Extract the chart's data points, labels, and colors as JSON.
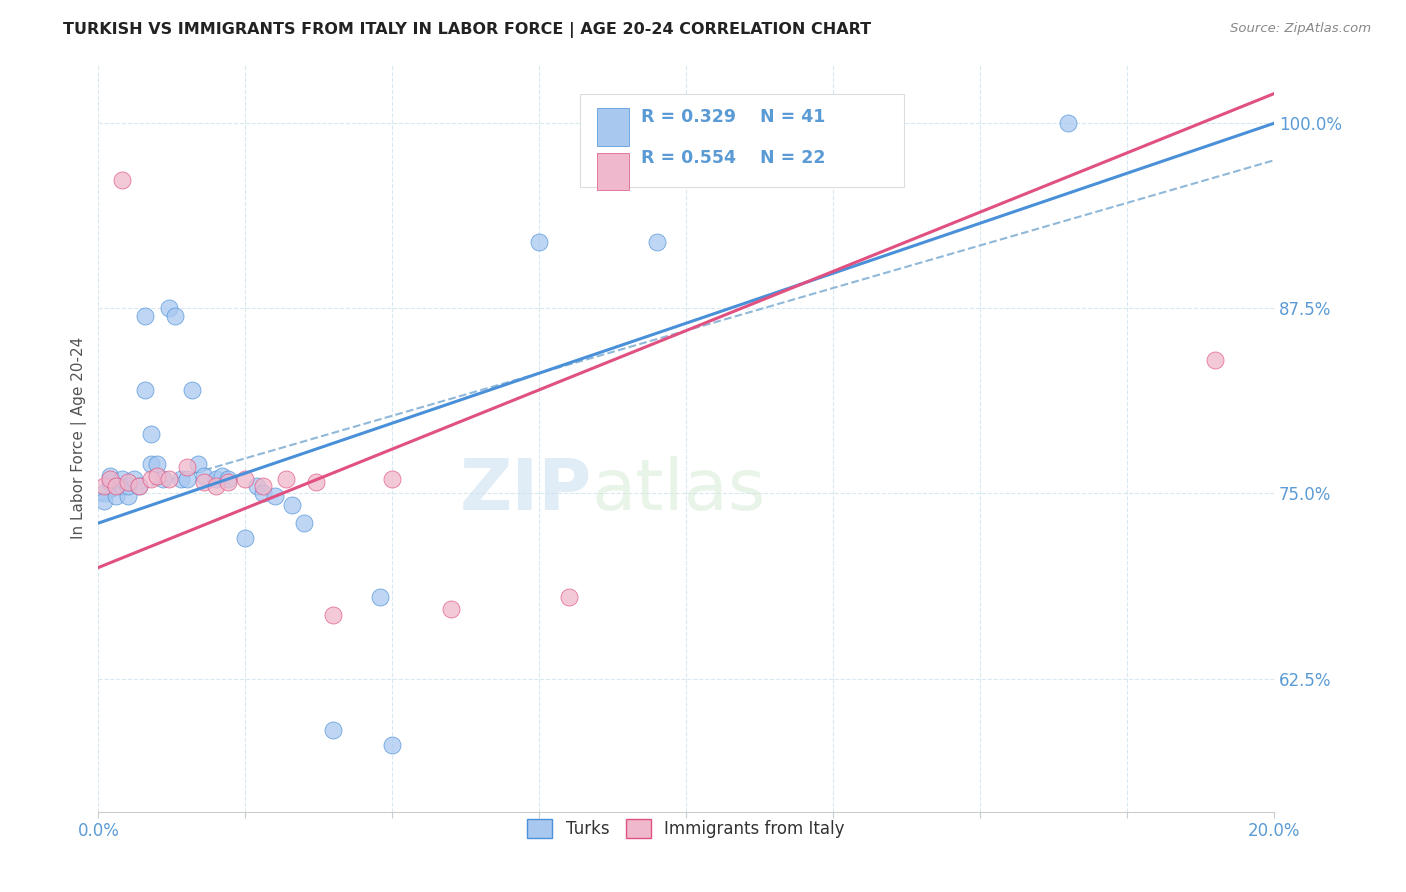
{
  "title": "TURKISH VS IMMIGRANTS FROM ITALY IN LABOR FORCE | AGE 20-24 CORRELATION CHART",
  "source": "Source: ZipAtlas.com",
  "ylabel": "In Labor Force | Age 20-24",
  "xlim": [
    0.0,
    0.2
  ],
  "ylim": [
    0.535,
    1.04
  ],
  "xticks": [
    0.0,
    0.025,
    0.05,
    0.075,
    0.1,
    0.125,
    0.15,
    0.175,
    0.2
  ],
  "yticks_right": [
    0.625,
    0.75,
    0.875,
    1.0
  ],
  "ytick_right_labels": [
    "62.5%",
    "75.0%",
    "87.5%",
    "100.0%"
  ],
  "blue_trend": [
    0.73,
    1.0
  ],
  "pink_trend": [
    0.7,
    1.02
  ],
  "dashed_trend": [
    0.745,
    0.975
  ],
  "turks_x": [
    0.001,
    0.001,
    0.002,
    0.002,
    0.003,
    0.003,
    0.004,
    0.004,
    0.005,
    0.005,
    0.006,
    0.007,
    0.008,
    0.008,
    0.009,
    0.009,
    0.01,
    0.011,
    0.012,
    0.013,
    0.014,
    0.015,
    0.016,
    0.017,
    0.018,
    0.02,
    0.021,
    0.022,
    0.025,
    0.027,
    0.028,
    0.03,
    0.033,
    0.035,
    0.04,
    0.048,
    0.05,
    0.075,
    0.095,
    0.1,
    0.165
  ],
  "turks_y": [
    0.75,
    0.745,
    0.758,
    0.762,
    0.755,
    0.748,
    0.755,
    0.76,
    0.748,
    0.755,
    0.76,
    0.755,
    0.87,
    0.82,
    0.79,
    0.77,
    0.77,
    0.76,
    0.875,
    0.87,
    0.76,
    0.76,
    0.82,
    0.77,
    0.762,
    0.76,
    0.762,
    0.76,
    0.72,
    0.755,
    0.75,
    0.748,
    0.742,
    0.73,
    0.59,
    0.68,
    0.58,
    0.92,
    0.92,
    1.0,
    1.0
  ],
  "italy_x": [
    0.001,
    0.002,
    0.003,
    0.004,
    0.005,
    0.007,
    0.009,
    0.01,
    0.012,
    0.015,
    0.018,
    0.02,
    0.022,
    0.025,
    0.028,
    0.032,
    0.037,
    0.04,
    0.05,
    0.06,
    0.08,
    0.19
  ],
  "italy_y": [
    0.755,
    0.76,
    0.755,
    0.962,
    0.758,
    0.755,
    0.76,
    0.762,
    0.76,
    0.768,
    0.758,
    0.755,
    0.758,
    0.76,
    0.755,
    0.76,
    0.758,
    0.668,
    0.76,
    0.672,
    0.68,
    0.84
  ],
  "blue_color": "#a8c8f0",
  "pink_color": "#f0b8cc",
  "blue_line_color": "#4a90d9",
  "pink_line_color": "#e05080",
  "dashed_line_color": "#90b8d8",
  "background_color": "#ffffff",
  "grid_color": "#d8e8f0",
  "title_color": "#222222",
  "axis_color": "#5b9bd5",
  "source_color": "#888888",
  "ylabel_color": "#555555",
  "watermark_zip": "ZIP",
  "watermark_atlas": "atlas",
  "legend_r1": "R = 0.329",
  "legend_n1": "N = 41",
  "legend_r2": "R = 0.554",
  "legend_n2": "N = 22"
}
